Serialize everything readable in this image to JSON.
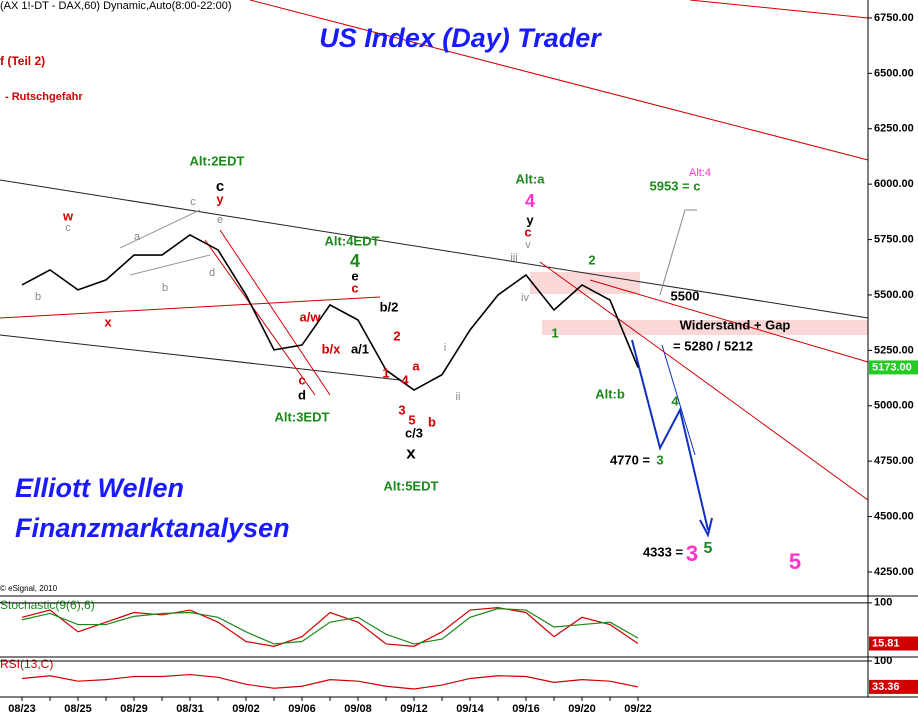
{
  "chart_data": [
    {
      "type": "line",
      "header": "(AX 1!-DT - DAX,60) Dynamic,Auto(8:00-22:00)",
      "title": "US Index (Day) Trader",
      "notes": [
        "f (Teil 2)",
        "- Rutschgefahr"
      ],
      "branding": [
        "Elliott Wellen",
        "Finanzmarktanalysen"
      ],
      "copyright": "© eSignal, 2010",
      "categories": [
        "08/23",
        null,
        "08/25",
        null,
        "08/29",
        null,
        "08/31",
        null,
        "09/02",
        null,
        "09/06",
        null,
        "09/08",
        null,
        "09/12",
        null,
        "09/14",
        null,
        "09/16",
        null,
        "09/20",
        null,
        "09/22"
      ],
      "series": [
        {
          "color": "#000000",
          "values": [
            5545,
            5613,
            5523,
            5568,
            5680,
            5680,
            5771,
            5703,
            5500,
            5252,
            5274,
            5455,
            5387,
            5161,
            5071,
            5140,
            5342,
            5500,
            5590,
            5432,
            5545,
            5477,
            5173
          ]
        }
      ],
      "last_label": "5173.00",
      "ylim": [
        4146,
        6831
      ],
      "yticks": [
        {
          "value": 4250,
          "label": "4250.00"
        },
        {
          "value": 4500,
          "label": "4500.00"
        },
        {
          "value": 4750,
          "label": "4750.00"
        },
        {
          "value": 5000,
          "label": "5000.00"
        },
        {
          "value": 5250,
          "label": "5250.00"
        },
        {
          "value": 5500,
          "label": "5500.00"
        },
        {
          "value": 5750,
          "label": "5750.00"
        },
        {
          "value": 6000,
          "label": "6000.00"
        },
        {
          "value": 6250,
          "label": "6250.00"
        },
        {
          "value": 6500,
          "label": "6500.00"
        },
        {
          "value": 6750,
          "label": "6750.00"
        }
      ],
      "annotations": [
        {
          "text": "Alt:2EDT",
          "color": "#1a8a1a"
        },
        {
          "text": "c",
          "color": "#000000"
        },
        {
          "text": "y",
          "color": "#d00000"
        },
        {
          "text": "c",
          "color": "#888888"
        },
        {
          "text": "w",
          "color": "#d00000"
        },
        {
          "text": "c",
          "color": "#888888"
        },
        {
          "text": "a",
          "color": "#888888"
        },
        {
          "text": "e",
          "color": "#888888"
        },
        {
          "text": "d",
          "color": "#888888"
        },
        {
          "text": "b",
          "color": "#888888"
        },
        {
          "text": "b",
          "color": "#888888"
        },
        {
          "text": "x",
          "color": "#d00000"
        },
        {
          "text": "Alt:4EDT",
          "color": "#1a8a1a"
        },
        {
          "text": "4",
          "color": "#1a8a1a"
        },
        {
          "text": "e",
          "color": "#000000"
        },
        {
          "text": "c",
          "color": "#d00000"
        },
        {
          "text": "b/2",
          "color": "#000000"
        },
        {
          "text": "a/w",
          "color": "#d00000"
        },
        {
          "text": "2",
          "color": "#d00000"
        },
        {
          "text": "b/x",
          "color": "#d00000"
        },
        {
          "text": "a/1",
          "color": "#000000"
        },
        {
          "text": "1",
          "color": "#d00000"
        },
        {
          "text": "c",
          "color": "#d00000"
        },
        {
          "text": "d",
          "color": "#000000"
        },
        {
          "text": "Alt:3EDT",
          "color": "#1a8a1a"
        },
        {
          "text": "a",
          "color": "#d00000"
        },
        {
          "text": "4",
          "color": "#d00000"
        },
        {
          "text": "3",
          "color": "#d00000"
        },
        {
          "text": "5",
          "color": "#d00000"
        },
        {
          "text": "b",
          "color": "#d00000"
        },
        {
          "text": "c/3",
          "color": "#000000"
        },
        {
          "text": "x",
          "color": "#000000"
        },
        {
          "text": "Alt:5EDT",
          "color": "#1a8a1a"
        },
        {
          "text": "i",
          "color": "#888888"
        },
        {
          "text": "ii",
          "color": "#888888"
        },
        {
          "text": "Alt:a",
          "color": "#1a8a1a"
        },
        {
          "text": "4",
          "color": "#ff33cc"
        },
        {
          "text": "y",
          "color": "#000000"
        },
        {
          "text": "c",
          "color": "#d00000"
        },
        {
          "text": "v",
          "color": "#888888"
        },
        {
          "text": "iii",
          "color": "#888888"
        },
        {
          "text": "iv",
          "color": "#888888"
        },
        {
          "text": "1",
          "color": "#1a8a1a"
        },
        {
          "text": "2",
          "color": "#1a8a1a"
        },
        {
          "text": "Alt:b",
          "color": "#1a8a1a"
        },
        {
          "text": "5953 = c",
          "color": "#1a8a1a"
        },
        {
          "text": "Alt:4",
          "color": "#ff33cc"
        },
        {
          "text": "5500",
          "color": "#000000"
        },
        {
          "text": "Widerstand + Gap",
          "color": "#000000"
        },
        {
          "text": "= 5280 / 5212",
          "color": "#000000"
        },
        {
          "text": "4",
          "color": "#1a8a1a"
        },
        {
          "text": "4770 =",
          "color": "#000000"
        },
        {
          "text": "3",
          "color": "#1a8a1a"
        },
        {
          "text": "4333 =",
          "color": "#000000"
        },
        {
          "text": "3",
          "color": "#ff33cc"
        },
        {
          "text": "5",
          "color": "#1a8a1a"
        },
        {
          "text": "5",
          "color": "#ff33cc"
        }
      ]
    },
    {
      "type": "line",
      "title": "Stochastic(9(6),6)",
      "ylim": [
        -10,
        110
      ],
      "yticks": [
        100
      ],
      "series": [
        {
          "color": "#d00000",
          "values": [
            70,
            85,
            40,
            60,
            80,
            75,
            85,
            60,
            20,
            10,
            30,
            80,
            60,
            15,
            10,
            40,
            85,
            90,
            80,
            30,
            70,
            55,
            15.81
          ]
        },
        {
          "color": "#1a8a1a",
          "values": [
            65,
            78,
            55,
            55,
            72,
            78,
            80,
            70,
            40,
            15,
            20,
            60,
            70,
            35,
            15,
            25,
            70,
            88,
            85,
            50,
            55,
            60,
            27
          ]
        }
      ]
    },
    {
      "type": "line",
      "title": "RSI(13,C)",
      "ylim": [
        10,
        105
      ],
      "yticks": [
        100
      ],
      "series": [
        {
          "color": "#d00000",
          "values": [
            55,
            62,
            48,
            52,
            60,
            60,
            65,
            58,
            40,
            30,
            35,
            52,
            48,
            35,
            28,
            38,
            55,
            62,
            60,
            45,
            52,
            48,
            33.36
          ]
        }
      ]
    }
  ]
}
